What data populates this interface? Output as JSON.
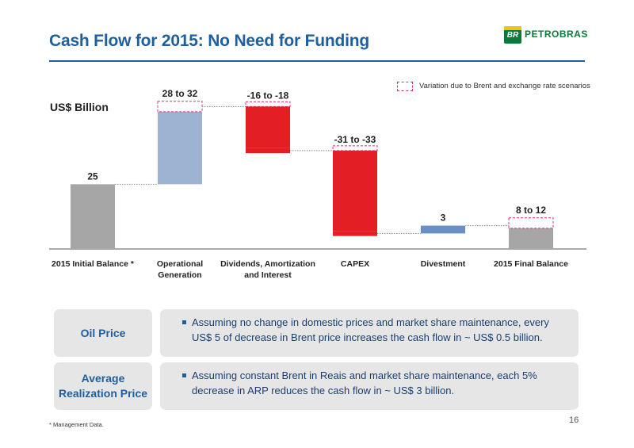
{
  "header": {
    "title": "Cash Flow for 2015: No Need for Funding",
    "logo_badge": "BR",
    "logo_text": "PETROBRAS"
  },
  "unit_label": "US$ Billion",
  "legend_text": "Variation due to Brent and exchange rate scenarios",
  "colors": {
    "initial": "#a6a6a6",
    "operational": "#9eb3d1",
    "outflow": "#e31e24",
    "divestment": "#6b8ec4",
    "final": "#a6a6a6",
    "range_outline": "#d6336c",
    "title": "#1f5f9e"
  },
  "chart_data": {
    "type": "bar",
    "subtype": "waterfall",
    "categories": [
      "2015 Initial Balance *",
      "Operational Generation",
      "Dividends, Amortization and Interest",
      "CAPEX",
      "Divestment",
      "2015 Final Balance"
    ],
    "bars": [
      {
        "category": "2015 Initial Balance *",
        "kind": "total",
        "value": 25,
        "label": "25"
      },
      {
        "category": "Operational Generation",
        "kind": "increase",
        "range": [
          28,
          32
        ],
        "label": "28 to 32"
      },
      {
        "category": "Dividends, Amortization and Interest",
        "kind": "decrease",
        "range": [
          -16,
          -18
        ],
        "label": "-16 to -18"
      },
      {
        "category": "CAPEX",
        "kind": "decrease",
        "range": [
          -31,
          -33
        ],
        "label": "-31 to -33"
      },
      {
        "category": "Divestment",
        "kind": "increase",
        "value": 3,
        "label": "3"
      },
      {
        "category": "2015 Final Balance",
        "kind": "total",
        "range": [
          8,
          12
        ],
        "label": "8 to 12"
      }
    ],
    "ylabel": "US$ Billion",
    "ylim": [
      0,
      60
    ],
    "grid": false,
    "legend_position": "top-right"
  },
  "sensitivity": [
    {
      "label": "Oil Price",
      "text": "Assuming no change in domestic prices and market share maintenance, every US$ 5 of decrease in Brent price increases the cash flow in ~ US$ 0.5 billion."
    },
    {
      "label": "Average Realization Price",
      "text": "Assuming constant Brent in Reais and market share maintenance, each 5% decrease in ARP reduces the cash flow in ~ US$ 3 billion."
    }
  ],
  "footnote": "* Management Data.",
  "page_number": "16"
}
